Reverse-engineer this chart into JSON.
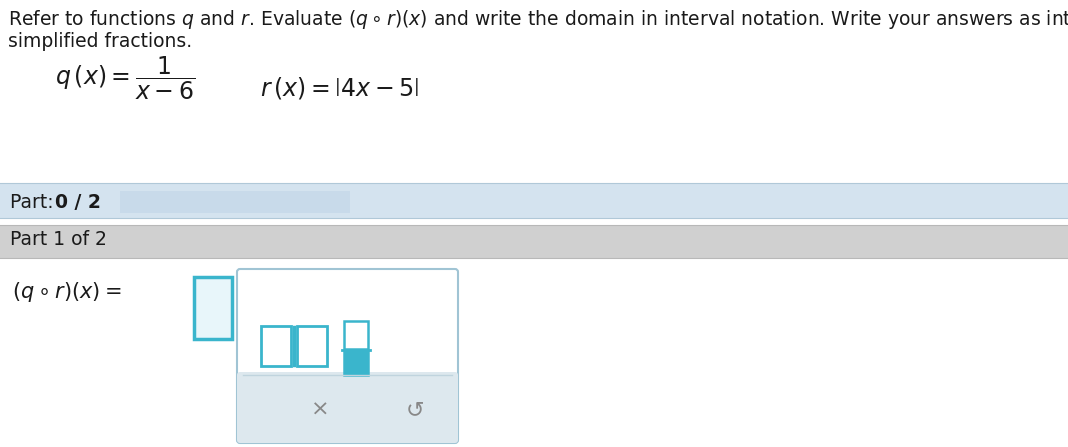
{
  "bg_color": "#ffffff",
  "part_bar_color": "#d4e3ef",
  "part1_bar_color": "#d0d0d0",
  "progress_bar_color": "#c8daea",
  "toolbar_border_color": "#a0c4d4",
  "teal_color": "#3ab5cc",
  "gray_text": "#888888",
  "dark_text": "#1a1a1a",
  "title_line1": "Refer to functions $q$ and $r$. Evaluate $(q \\circ r)(x)$ and write the domain in interval notation. Write your answers as integers or",
  "title_line2": "simplified fractions.",
  "font_title": 13.5,
  "font_func": 16,
  "font_part": 13.5
}
